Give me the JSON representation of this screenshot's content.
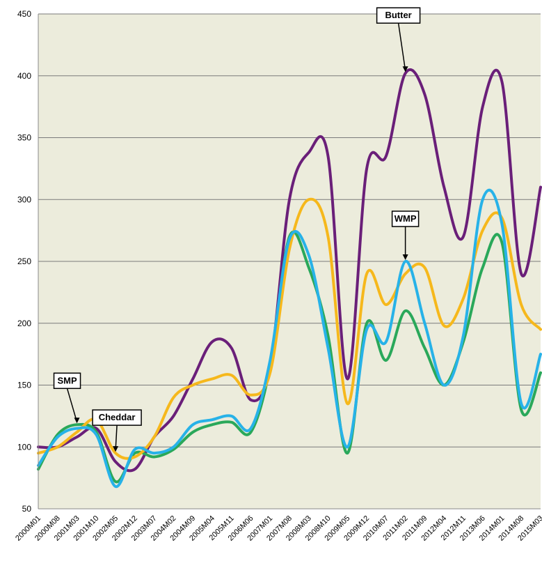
{
  "chart_data": {
    "type": "line",
    "title": "",
    "xlabel": "",
    "ylabel": "",
    "ylim": [
      50,
      450
    ],
    "yticks": [
      50,
      100,
      150,
      200,
      250,
      300,
      350,
      400,
      450
    ],
    "grid": "horizontal",
    "plot_background": "#ececdc",
    "categories": [
      "2000M01",
      "2000M08",
      "2001M03",
      "2001M10",
      "2002M05",
      "2002M12",
      "2003M07",
      "2004M02",
      "2004M09",
      "2005M04",
      "2005M11",
      "2006M06",
      "2007M01",
      "2007M08",
      "2008M03",
      "2008M10",
      "2009M05",
      "2009M12",
      "2010M07",
      "2011M02",
      "2011M09",
      "2012M04",
      "2012M11",
      "2013M06",
      "2014M01",
      "2014M08",
      "2015M03"
    ],
    "series": [
      {
        "name": "Butter",
        "color": "#6a1f79",
        "values": [
          100,
          100,
          108,
          115,
          88,
          82,
          108,
          125,
          155,
          185,
          180,
          138,
          165,
          300,
          338,
          335,
          155,
          325,
          335,
          402,
          385,
          310,
          270,
          375,
          395,
          240,
          310
        ]
      },
      {
        "name": "SMP",
        "color": "#2aa85a",
        "values": [
          82,
          110,
          118,
          112,
          72,
          95,
          92,
          98,
          112,
          118,
          120,
          112,
          165,
          270,
          245,
          190,
          95,
          200,
          170,
          210,
          180,
          150,
          185,
          245,
          265,
          130,
          160
        ]
      },
      {
        "name": "Cheddar",
        "color": "#f6b81c",
        "values": [
          95,
          100,
          112,
          122,
          95,
          92,
          108,
          140,
          150,
          155,
          158,
          142,
          160,
          260,
          300,
          270,
          135,
          240,
          215,
          240,
          245,
          198,
          220,
          275,
          285,
          215,
          195
        ]
      },
      {
        "name": "WMP",
        "color": "#27b2e8",
        "values": [
          85,
          108,
          115,
          110,
          68,
          98,
          95,
          100,
          118,
          122,
          125,
          115,
          170,
          268,
          255,
          180,
          100,
          195,
          185,
          250,
          200,
          150,
          190,
          300,
          280,
          135,
          175
        ]
      }
    ],
    "annotations": [
      {
        "label": "Butter",
        "series": "Butter",
        "point": 19
      },
      {
        "label": "WMP",
        "series": "WMP",
        "point": 19
      },
      {
        "label": "SMP",
        "series": "SMP",
        "point": 2
      },
      {
        "label": "Cheddar",
        "series": "Cheddar",
        "point": 4
      }
    ]
  }
}
